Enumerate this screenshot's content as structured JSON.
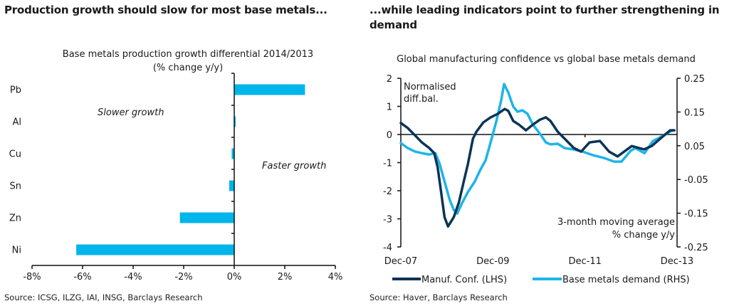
{
  "left_panel": {
    "heading": "Production growth should slow for most base metals...",
    "source": "Source: ICSG, ILZG, IAI, INSG, Barclays Research"
  },
  "right_panel": {
    "heading_line1": "...while leading indicators point to further strengthening in",
    "heading_line2": "demand",
    "source": "Source: Haver, Barclays Research"
  },
  "colors": {
    "bar": "#00b5ea",
    "manuf": "#0b3456",
    "demand": "#1db4e8",
    "axis": "#111111"
  },
  "chart_data": [
    {
      "type": "bar",
      "orientation": "horizontal",
      "title": "Base metals production growth differential 2014/2013",
      "subtitle": "(% change y/y)",
      "categories": [
        "Pb",
        "Al",
        "Cu",
        "Sn",
        "Zn",
        "Ni"
      ],
      "values": [
        2.8,
        0.05,
        -0.1,
        -0.2,
        -2.15,
        -6.25
      ],
      "xlim": [
        -8,
        4
      ],
      "xticks": [
        "-8%",
        "-6%",
        "-4%",
        "-2%",
        "0%",
        "2%",
        "4%"
      ],
      "xtick_values": [
        -8,
        -6,
        -4,
        -2,
        0,
        2,
        4
      ],
      "annotations": [
        "Slower growth",
        "Faster growth"
      ],
      "grid": false
    },
    {
      "type": "line",
      "title": "Global manufacturing confidence vs global base metals demand",
      "x_unit": "months since Dec-07",
      "xlim": [
        0,
        72
      ],
      "xticks": [
        "Dec-07",
        "Dec-09",
        "Dec-11",
        "Dec-13"
      ],
      "xtick_values": [
        0,
        24,
        48,
        72
      ],
      "y_left": {
        "label": "Normalised diff.bal.",
        "lim": [
          -4,
          2
        ],
        "ticks": [
          "2",
          "1",
          "0",
          "-1",
          "-2",
          "-3",
          "-4"
        ],
        "tick_values": [
          2,
          1,
          0,
          -1,
          -2,
          -3,
          -4
        ]
      },
      "y_right": {
        "label": "3-month moving average % change y/y",
        "label_line1": "3-month moving average",
        "label_line2": "% change y/y",
        "lim": [
          -0.25,
          0.25
        ],
        "ticks": [
          "0.25",
          "0.15",
          "0.05",
          "-0.05",
          "-0.15",
          "-0.25"
        ],
        "tick_values": [
          0.25,
          0.15,
          0.05,
          -0.05,
          -0.15,
          -0.25
        ]
      },
      "annotation_left": {
        "line1": "Normalised",
        "line2": "diff.bal."
      },
      "series": [
        {
          "name": "Manuf. Conf. (LHS)",
          "axis": "left",
          "x": [
            0,
            1.8,
            3.7,
            5.5,
            7.4,
            8.7,
            9.6,
            10.5,
            11.4,
            12.3,
            13.8,
            15.1,
            16.4,
            17.5,
            18.8,
            19.7,
            21.5,
            23.4,
            25.2,
            27.1,
            28.0,
            29.3,
            30.8,
            32.6,
            34.4,
            36.3,
            37.8,
            39.0,
            40.9,
            42.7,
            45.1,
            47.0,
            49.2,
            51.9,
            54.3,
            56.5,
            60.2,
            63.4,
            65.4,
            67.6,
            70.2,
            71.3
          ],
          "values": [
            0.41,
            0.23,
            -0.03,
            -0.28,
            -0.48,
            -0.66,
            -1.16,
            -2.05,
            -2.94,
            -3.27,
            -2.94,
            -2.43,
            -1.67,
            -1.04,
            -0.15,
            0.1,
            0.43,
            0.61,
            0.73,
            0.91,
            0.84,
            0.48,
            0.35,
            0.15,
            0.35,
            0.53,
            0.61,
            0.48,
            0.1,
            -0.15,
            -0.48,
            -0.61,
            -0.28,
            -0.23,
            -0.61,
            -0.78,
            -0.41,
            -0.53,
            -0.41,
            -0.15,
            0.15,
            0.15
          ]
        },
        {
          "name": "Base metals demand (RHS)",
          "axis": "right",
          "x": [
            0,
            1.8,
            3.7,
            5.5,
            7.4,
            9.0,
            10.1,
            11.4,
            12.7,
            13.8,
            14.7,
            16.0,
            17.5,
            19.3,
            20.6,
            22.1,
            23.4,
            24.9,
            26.2,
            26.9,
            28.0,
            29.3,
            30.4,
            31.7,
            33.0,
            34.4,
            36.3,
            37.8,
            39.0,
            40.9,
            42.7,
            45.1,
            47.3,
            50.1,
            52.9,
            55.6,
            57.5,
            59.9,
            61.1,
            63.5,
            65.7,
            67.6,
            70.2,
            70.9
          ],
          "values": [
            0.058,
            0.043,
            0.033,
            0.028,
            0.024,
            0.028,
            -0.003,
            -0.056,
            -0.109,
            -0.14,
            -0.151,
            -0.119,
            -0.087,
            -0.056,
            -0.024,
            0.007,
            0.06,
            0.123,
            0.187,
            0.233,
            0.208,
            0.166,
            0.151,
            0.155,
            0.145,
            0.113,
            0.085,
            0.06,
            0.054,
            0.056,
            0.043,
            0.039,
            0.033,
            0.022,
            0.014,
            0.003,
            0.003,
            0.035,
            0.043,
            0.028,
            0.064,
            0.075,
            0.092,
            0.096
          ]
        }
      ],
      "legend": {
        "placement": "bottom",
        "entries": [
          "Manuf. Conf. (LHS)",
          "Base metals demand (RHS)"
        ]
      },
      "grid": false
    }
  ]
}
